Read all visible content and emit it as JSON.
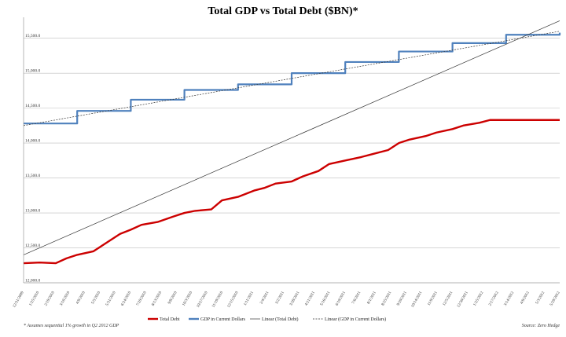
{
  "chart_data": {
    "type": "line",
    "title": "Total GDP vs Total Debt ($BN)*",
    "ylim": [
      12000,
      15800
    ],
    "y_ticks": [
      12000,
      12500,
      13000,
      13500,
      14000,
      14500,
      15000,
      15500
    ],
    "y_tick_labels": [
      "12,000.0",
      "12,500.0",
      "13,000.0",
      "13,500.0",
      "14,000.0",
      "14,500.0",
      "15,000.0",
      "15,500.0"
    ],
    "x_tick_labels": [
      "12/31/2009",
      "1/25/2010",
      "2/19/2010",
      "3/16/2010",
      "4/9/2010",
      "5/5/2010",
      "5/31/2010",
      "6/24/2010",
      "7/20/2010",
      "8/13/2010",
      "9/8/2010",
      "10/3/2010",
      "10/27/2010",
      "11/19/2010",
      "12/15/2010",
      "1/11/2011",
      "2/4/2011",
      "3/2/2011",
      "3/28/2011",
      "4/21/2011",
      "5/16/2011",
      "6/10/2011",
      "7/6/2011",
      "8/1/2011",
      "8/25/2011",
      "9/20/2011",
      "10/14/2011",
      "11/9/2011",
      "12/5/2011",
      "12/30/2011",
      "1/25/2012",
      "2/17/2012",
      "3/14/2012",
      "4/9/2012",
      "5/3/2012",
      "5/29/2012"
    ],
    "series": [
      {
        "name": "Total Debt",
        "color": "#cc0000",
        "x": [
          0,
          0.03,
          0.06,
          0.08,
          0.1,
          0.13,
          0.16,
          0.18,
          0.2,
          0.22,
          0.25,
          0.28,
          0.3,
          0.32,
          0.35,
          0.37,
          0.4,
          0.43,
          0.45,
          0.47,
          0.5,
          0.52,
          0.55,
          0.57,
          0.6,
          0.63,
          0.65,
          0.68,
          0.7,
          0.72,
          0.75,
          0.77,
          0.8,
          0.82,
          0.85,
          0.87,
          0.9,
          0.92,
          0.95,
          0.98,
          1
        ],
        "values": [
          12280,
          12290,
          12280,
          12350,
          12400,
          12450,
          12600,
          12700,
          12760,
          12830,
          12870,
          12950,
          13000,
          13030,
          13050,
          13180,
          13230,
          13320,
          13360,
          13420,
          13450,
          13520,
          13600,
          13700,
          13750,
          13800,
          13840,
          13900,
          14000,
          14050,
          14100,
          14150,
          14200,
          14250,
          14290,
          14330,
          14330,
          14330,
          14330,
          14330,
          14330
        ]
      },
      {
        "name": "GDP in Current Dollars",
        "color": "#4f81bd",
        "x": [
          0,
          0.1,
          0.2,
          0.3,
          0.4,
          0.5,
          0.6,
          0.7,
          0.8,
          0.9,
          1
        ],
        "values": [
          14280,
          14460,
          14620,
          14760,
          14840,
          15000,
          15160,
          15310,
          15430,
          15550,
          15580
        ]
      },
      {
        "name": "Linear (Total Debt)",
        "color": "#333333",
        "x": [
          0,
          1
        ],
        "values": [
          12400,
          15750
        ]
      },
      {
        "name": "Linear (GDP in Current Dollars)",
        "color": "#333333",
        "x": [
          0,
          1
        ],
        "values": [
          14250,
          15600
        ]
      }
    ],
    "legend_position": "bottom",
    "footnote": "* Assumes sequential 1% growth in Q2 2012 GDP",
    "source": "Source: Zero Hedge"
  }
}
